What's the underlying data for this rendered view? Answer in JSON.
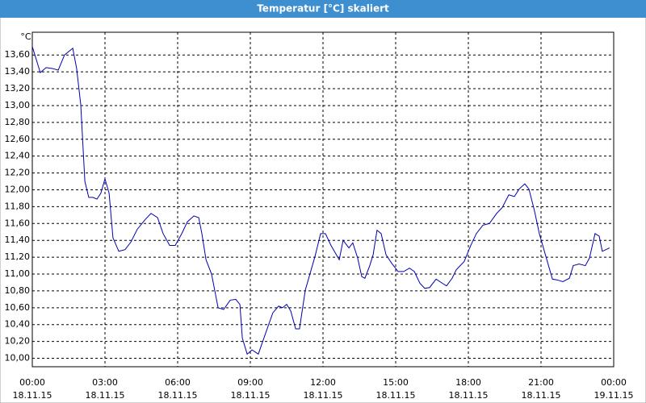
{
  "chart_data": {
    "type": "line",
    "title": "Temperatur [°C] skaliert",
    "y_label": "°C",
    "x": [
      0,
      0.33,
      0.57,
      0.83,
      1.07,
      1.33,
      1.67,
      1.83,
      2,
      2.17,
      2.33,
      2.5,
      2.67,
      2.83,
      3,
      3.17,
      3.33,
      3.57,
      3.83,
      4.07,
      4.33,
      4.67,
      4.9,
      5.17,
      5.4,
      5.67,
      5.9,
      6.17,
      6.4,
      6.67,
      6.87,
      7,
      7.17,
      7.4,
      7.67,
      7.9,
      8.17,
      8.4,
      8.57,
      8.67,
      8.87,
      9.07,
      9.33,
      9.67,
      9.93,
      10.17,
      10.33,
      10.5,
      10.67,
      10.87,
      11.03,
      11.27,
      11.67,
      11.9,
      12.1,
      12.33,
      12.67,
      12.83,
      13.07,
      13.23,
      13.43,
      13.6,
      13.73,
      13.93,
      14.07,
      14.23,
      14.4,
      14.6,
      14.83,
      15.1,
      15.33,
      15.57,
      15.77,
      16,
      16.2,
      16.4,
      16.67,
      16.93,
      17.1,
      17.33,
      17.5,
      17.83,
      18.1,
      18.33,
      18.6,
      18.87,
      19.17,
      19.4,
      19.67,
      19.9,
      20.1,
      20.33,
      20.5,
      20.73,
      20.93,
      21.2,
      21.47,
      21.67,
      21.9,
      22.17,
      22.33,
      22.57,
      22.83,
      23,
      23.23,
      23.4,
      23.53,
      23.83
    ],
    "series": [
      {
        "name": "Temperatur",
        "color": "#0000b0",
        "values": [
          13.7,
          13.39,
          13.45,
          13.44,
          13.42,
          13.6,
          13.68,
          13.44,
          13.01,
          12.1,
          11.91,
          11.91,
          11.89,
          11.96,
          12.13,
          11.96,
          11.43,
          11.27,
          11.29,
          11.38,
          11.53,
          11.65,
          11.72,
          11.67,
          11.48,
          11.34,
          11.34,
          11.48,
          11.62,
          11.69,
          11.67,
          11.48,
          11.17,
          11.0,
          10.6,
          10.58,
          10.69,
          10.7,
          10.64,
          10.24,
          10.05,
          10.1,
          10.05,
          10.33,
          10.54,
          10.62,
          10.6,
          10.64,
          10.56,
          10.35,
          10.35,
          10.81,
          11.21,
          11.48,
          11.48,
          11.34,
          11.17,
          11.4,
          11.31,
          11.37,
          11.19,
          10.97,
          10.95,
          11.1,
          11.23,
          11.52,
          11.48,
          11.23,
          11.13,
          11.03,
          11.03,
          11.07,
          11.03,
          10.89,
          10.83,
          10.84,
          10.94,
          10.89,
          10.86,
          10.95,
          11.05,
          11.15,
          11.34,
          11.48,
          11.58,
          11.6,
          11.72,
          11.79,
          11.94,
          11.92,
          12.01,
          12.07,
          12.01,
          11.75,
          11.48,
          11.21,
          10.94,
          10.93,
          10.91,
          10.95,
          11.1,
          11.12,
          11.1,
          11.19,
          11.48,
          11.45,
          11.27,
          11.31
        ]
      }
    ],
    "xlim": [
      0,
      24
    ],
    "xticks": [
      {
        "value": 0,
        "label": "00:00 18.11.15"
      },
      {
        "value": 3,
        "label": "03:00 18.11.15"
      },
      {
        "value": 6,
        "label": "06:00 18.11.15"
      },
      {
        "value": 9,
        "label": "09:00 18.11.15"
      },
      {
        "value": 12,
        "label": "12:00 18.11.15"
      },
      {
        "value": 15,
        "label": "15:00 18.11.15"
      },
      {
        "value": 18,
        "label": "18:00 18.11.15"
      },
      {
        "value": 21,
        "label": "21:00 18.11.15"
      },
      {
        "value": 24,
        "label": "00:00 19.11.15"
      }
    ],
    "ylim": [
      9.9,
      13.87
    ],
    "yticks": [
      {
        "value": 10,
        "label": "10,00"
      },
      {
        "value": 10.2,
        "label": "10,20"
      },
      {
        "value": 10.4,
        "label": "10,40"
      },
      {
        "value": 10.6,
        "label": "10,60"
      },
      {
        "value": 10.8,
        "label": "10,80"
      },
      {
        "value": 11,
        "label": "11,00"
      },
      {
        "value": 11.2,
        "label": "11,20"
      },
      {
        "value": 11.4,
        "label": "11,40"
      },
      {
        "value": 11.6,
        "label": "11,60"
      },
      {
        "value": 11.8,
        "label": "11,80"
      },
      {
        "value": 12,
        "label": "12,00"
      },
      {
        "value": 12.2,
        "label": "12,20"
      },
      {
        "value": 12.4,
        "label": "12,40"
      },
      {
        "value": 12.6,
        "label": "12,60"
      },
      {
        "value": 12.8,
        "label": "12,80"
      },
      {
        "value": 13,
        "label": "13,00"
      },
      {
        "value": 13.2,
        "label": "13,20"
      },
      {
        "value": 13.4,
        "label": "13,40"
      },
      {
        "value": 13.6,
        "label": "13,60"
      }
    ],
    "grid": true
  }
}
